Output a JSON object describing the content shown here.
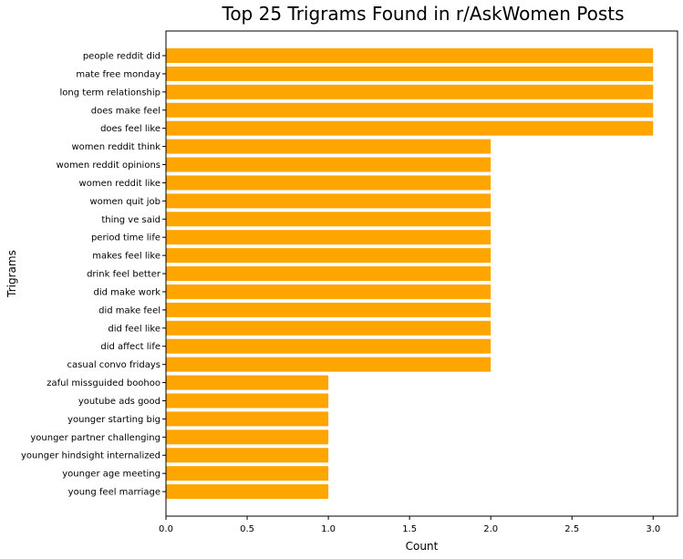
{
  "chart_data": {
    "type": "bar",
    "orientation": "horizontal",
    "title": "Top 25 Trigrams Found in r/AskWomen Posts",
    "xlabel": "Count",
    "ylabel": "Trigrams",
    "xlim": [
      0,
      3.15
    ],
    "xticks": [
      "0.0",
      "0.5",
      "1.0",
      "1.5",
      "2.0",
      "2.5",
      "3.0"
    ],
    "xtick_values": [
      0,
      0.5,
      1.0,
      1.5,
      2.0,
      2.5,
      3.0
    ],
    "grid": false,
    "bar_color": "#FFA500",
    "categories": [
      "people reddit did",
      "mate free monday",
      "long term relationship",
      "does make feel",
      "does feel like",
      "women reddit think",
      "women reddit opinions",
      "women reddit like",
      "women quit job",
      "thing ve said",
      "period time life",
      "makes feel like",
      "drink feel better",
      "did make work",
      "did make feel",
      "did feel like",
      "did affect life",
      "casual convo fridays",
      "zaful missguided boohoo",
      "youtube ads good",
      "younger starting big",
      "younger partner challenging",
      "younger hindsight internalized",
      "younger age meeting",
      "young feel marriage"
    ],
    "values": [
      3,
      3,
      3,
      3,
      3,
      2,
      2,
      2,
      2,
      2,
      2,
      2,
      2,
      2,
      2,
      2,
      2,
      2,
      1,
      1,
      1,
      1,
      1,
      1,
      1
    ]
  }
}
